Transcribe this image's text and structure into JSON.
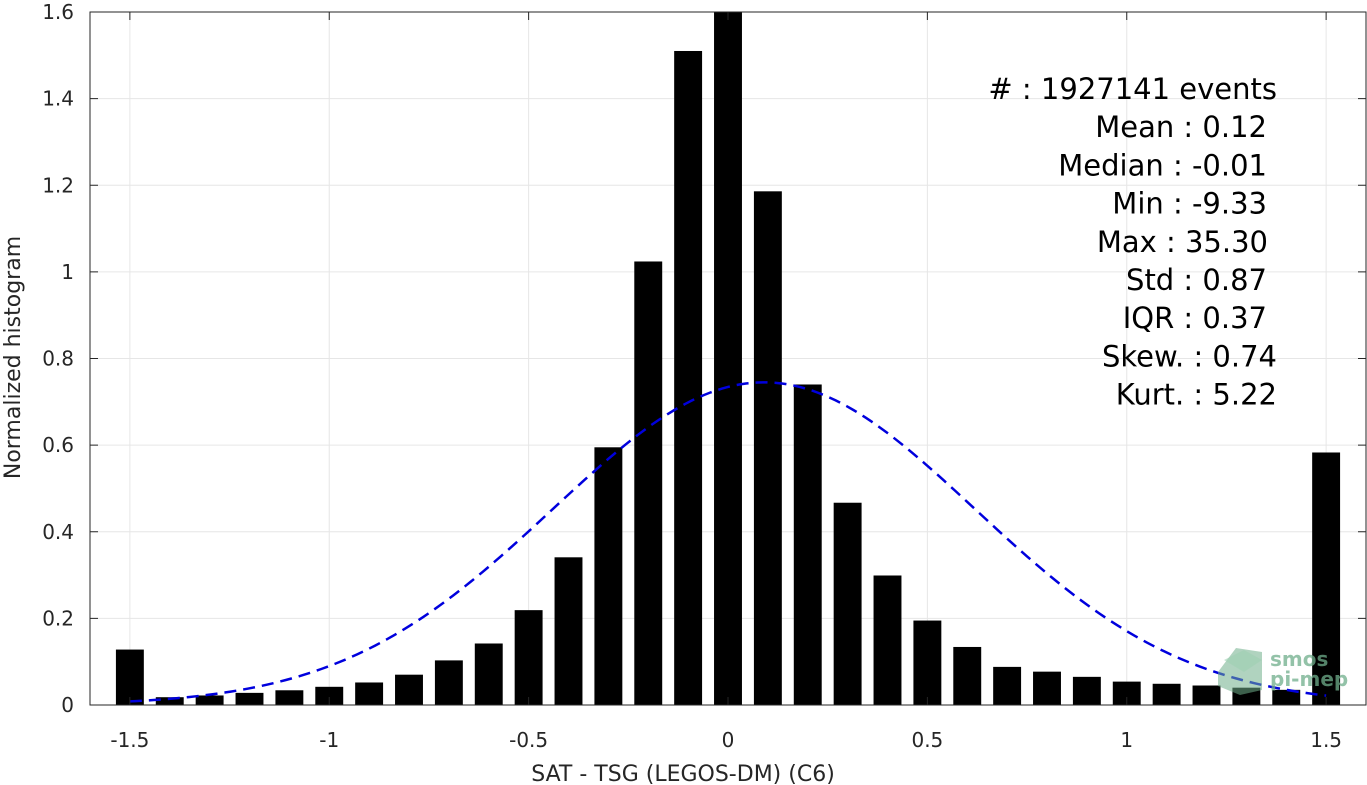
{
  "chart_data": {
    "type": "bar",
    "xlabel": "SAT - TSG (LEGOS-DM) (C6)",
    "ylabel": "Normalized histogram",
    "xlim": [
      -1.6,
      1.6
    ],
    "ylim": [
      0,
      1.6
    ],
    "grid": true,
    "bar_color": "#000000",
    "x_ticks": [
      -1.5,
      -1,
      -0.5,
      0,
      0.5,
      1,
      1.5
    ],
    "x_tick_labels": [
      "-1.5",
      "-1",
      "-0.5",
      "0",
      "0.5",
      "1",
      "1.5"
    ],
    "y_ticks": [
      0,
      0.2,
      0.4,
      0.6,
      0.8,
      1,
      1.2,
      1.4,
      1.6
    ],
    "y_tick_labels": [
      "0",
      "0.2",
      "0.4",
      "0.6",
      "0.8",
      "1",
      "1.2",
      "1.4",
      "1.6"
    ],
    "bars": {
      "x": [
        -1.5,
        -1.4,
        -1.3,
        -1.2,
        -1.1,
        -1.0,
        -0.9,
        -0.8,
        -0.7,
        -0.6,
        -0.5,
        -0.4,
        -0.3,
        -0.2,
        -0.1,
        0.0,
        0.1,
        0.2,
        0.3,
        0.4,
        0.5,
        0.6,
        0.7,
        0.8,
        0.9,
        1.0,
        1.1,
        1.2,
        1.3,
        1.4,
        1.5
      ],
      "values": [
        0.128,
        0.018,
        0.022,
        0.028,
        0.034,
        0.042,
        0.052,
        0.07,
        0.103,
        0.142,
        0.219,
        0.341,
        0.595,
        1.024,
        1.51,
        1.6,
        1.186,
        0.74,
        0.467,
        0.299,
        0.195,
        0.134,
        0.088,
        0.077,
        0.065,
        0.054,
        0.049,
        0.045,
        0.04,
        0.035,
        0.583
      ],
      "bar_width": 0.07
    },
    "fit": {
      "type": "gaussian",
      "style": "dashed",
      "color": "#0000dd",
      "mean": 0.09,
      "std": 0.53,
      "peak": 0.745,
      "x_range": [
        -1.5,
        1.5
      ]
    },
    "stats": [
      {
        "label": "#  : 1927141 events"
      },
      {
        "label": "Mean : 0.12"
      },
      {
        "label": "Median : -0.01"
      },
      {
        "label": "Min : -9.33"
      },
      {
        "label": "Max : 35.30"
      },
      {
        "label": "Std : 0.87"
      },
      {
        "label": "IQR : 0.37"
      },
      {
        "label": "Skew. : 0.74"
      },
      {
        "label": "Kurt. : 5.22"
      }
    ],
    "watermark": {
      "line1": "smos",
      "line2": "pi-mep",
      "color": "#6fae8b"
    }
  }
}
